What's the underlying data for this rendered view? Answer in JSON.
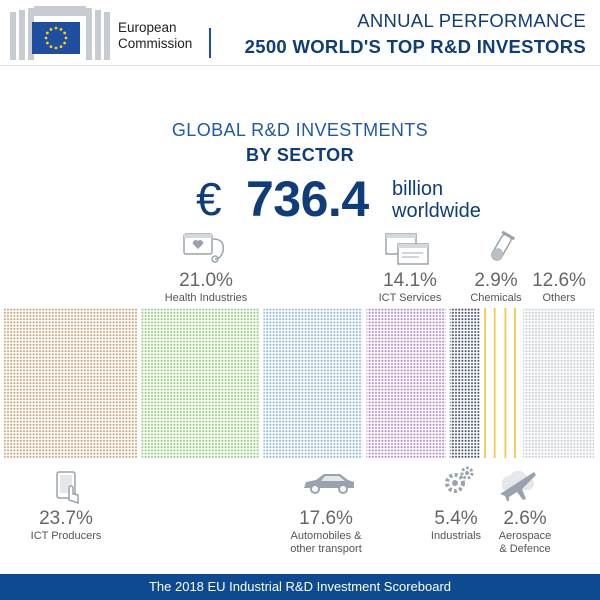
{
  "header": {
    "logo_text_line1": "European",
    "logo_text_line2": "Commission",
    "line1": "ANNUAL PERFORMANCE",
    "line2": "2500 WORLD'S TOP R&D INVESTORS"
  },
  "main": {
    "title_line1": "GLOBAL R&D INVESTMENTS",
    "title_line2": "BY SECTOR",
    "currency": "€",
    "total": "736.4",
    "unit_line1": "billion",
    "unit_line2": "worldwide"
  },
  "chart_data": {
    "type": "bar",
    "categories": [
      "ICT Producers",
      "Health Industries",
      "Automobiles & other transport",
      "ICT Services",
      "Industrials",
      "Chemicals",
      "Aerospace & Defence",
      "Others"
    ],
    "values": [
      23.7,
      21.0,
      17.6,
      14.1,
      5.4,
      2.9,
      2.6,
      12.6
    ],
    "labels": [
      "23.7%",
      "21.0%",
      "17.6%",
      "14.1%",
      "5.4%",
      "2.9%",
      "2.6%",
      "12.6%"
    ],
    "colors": [
      "#c9a27a",
      "#8fcf7a",
      "#8fb6df",
      "#b58ad0",
      "#4a5670",
      "#f2c94c",
      "#f2c94c",
      "#c8ccd4"
    ]
  },
  "sector_labels": {
    "ict_producers_name": "ICT Producers",
    "health_name": "Health Industries",
    "auto_name_1": "Automobiles &",
    "auto_name_2": "other transport",
    "ict_services_name": "ICT Services",
    "industrials_name": "Industrials",
    "chemicals_name": "Chemicals",
    "aero_name_1": "Aerospace",
    "aero_name_2": "& Defence",
    "others_name": "Others"
  },
  "icons": {
    "health": "health-monitor-icon",
    "ict_services": "browser-windows-icon",
    "chemicals": "test-tube-icon",
    "ict_producers": "tablet-touch-icon",
    "auto": "car-icon",
    "industrials": "gears-icon",
    "aero": "airplane-cloud-icon"
  },
  "footer": {
    "text": "The 2018 EU Industrial R&D Investment Scoreboard"
  }
}
